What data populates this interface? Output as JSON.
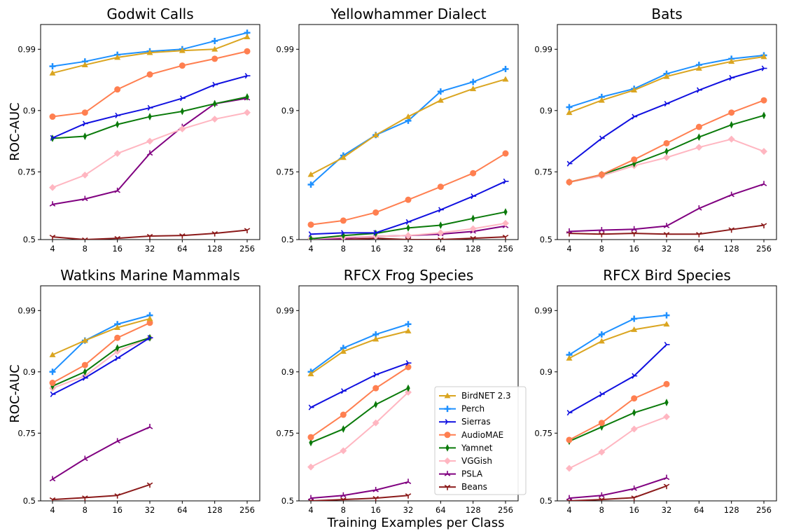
{
  "figure": {
    "ylabel": "ROC-AUC",
    "xlabel": "Training Examples per Class"
  },
  "legend": [
    {
      "name": "BirdNET 2.3",
      "color": "#DAA520",
      "marker": "triangle"
    },
    {
      "name": "Perch",
      "color": "#1E90FF",
      "marker": "plus"
    },
    {
      "name": "Sierras",
      "color": "#1010E0",
      "marker": "tri-right"
    },
    {
      "name": "AudioMAE",
      "color": "#FF7F50",
      "marker": "circle"
    },
    {
      "name": "Yamnet",
      "color": "#0A7A0A",
      "marker": "thin-diamond"
    },
    {
      "name": "VGGish",
      "color": "#FFB6C1",
      "marker": "diamond"
    },
    {
      "name": "PSLA",
      "color": "#800080",
      "marker": "tri-up"
    },
    {
      "name": "Beans",
      "color": "#8B1A1A",
      "marker": "tri-down"
    }
  ],
  "chart_data": [
    {
      "type": "line",
      "title": "Godwit Calls",
      "ylabel": "ROC-AUC",
      "x": [
        4,
        8,
        16,
        32,
        64,
        128,
        256
      ],
      "x_scale": "log2",
      "y_scale": "logit-like",
      "ylim": [
        0.5,
        0.996
      ],
      "yticks": [
        0.5,
        0.75,
        0.9,
        0.99
      ],
      "series": [
        {
          "name": "BirdNET 2.3",
          "values": [
            0.955,
            0.967,
            0.978,
            0.985,
            0.988,
            0.99,
            0.993
          ]
        },
        {
          "name": "Perch",
          "values": [
            0.965,
            0.972,
            0.982,
            0.987,
            0.99,
            0.992,
            0.994
          ]
        },
        {
          "name": "Sierras",
          "values": [
            0.833,
            0.868,
            0.888,
            0.904,
            0.918,
            0.938,
            0.951
          ]
        },
        {
          "name": "AudioMAE",
          "values": [
            0.885,
            0.895,
            0.931,
            0.953,
            0.966,
            0.976,
            0.987
          ]
        },
        {
          "name": "Yamnet",
          "values": [
            0.832,
            0.837,
            0.866,
            0.885,
            0.898,
            0.91,
            0.92
          ]
        },
        {
          "name": "VGGish",
          "values": [
            0.692,
            0.738,
            0.795,
            0.825,
            0.855,
            0.879,
            0.895
          ]
        },
        {
          "name": "PSLA",
          "values": [
            0.63,
            0.65,
            0.68,
            0.795,
            0.86,
            0.91,
            0.918
          ]
        },
        {
          "name": "Beans",
          "values": [
            0.51,
            0.493,
            0.505,
            0.513,
            0.515,
            0.523,
            0.535
          ]
        }
      ]
    },
    {
      "type": "line",
      "title": "Yellowhammer Dialect",
      "x": [
        4,
        8,
        16,
        32,
        64,
        128,
        256
      ],
      "x_scale": "log2",
      "y_scale": "logit-like",
      "ylim": [
        0.5,
        0.996
      ],
      "yticks": [
        0.5,
        0.75,
        0.9,
        0.99
      ],
      "series": [
        {
          "name": "BirdNET 2.3",
          "values": [
            0.74,
            0.785,
            0.84,
            0.885,
            0.915,
            0.932,
            0.946
          ]
        },
        {
          "name": "Perch",
          "values": [
            0.703,
            0.79,
            0.84,
            0.875,
            0.928,
            0.942,
            0.961
          ]
        },
        {
          "name": "Sierras",
          "values": [
            0.52,
            0.525,
            0.525,
            0.565,
            0.61,
            0.66,
            0.715
          ]
        },
        {
          "name": "AudioMAE",
          "values": [
            0.555,
            0.57,
            0.6,
            0.647,
            0.695,
            0.745,
            0.795
          ]
        },
        {
          "name": "Yamnet",
          "values": [
            0.503,
            0.515,
            0.523,
            0.543,
            0.553,
            0.578,
            0.602
          ]
        },
        {
          "name": "VGGish",
          "values": [
            0.503,
            0.508,
            0.512,
            0.515,
            0.525,
            0.54,
            0.56
          ]
        },
        {
          "name": "PSLA",
          "values": [
            0.5,
            0.505,
            0.512,
            0.515,
            0.52,
            0.53,
            0.55
          ]
        },
        {
          "name": "Beans",
          "values": [
            0.5,
            0.5,
            0.505,
            0.5,
            0.5,
            0.505,
            0.51
          ]
        }
      ]
    },
    {
      "type": "line",
      "title": "Bats",
      "x": [
        4,
        8,
        16,
        32,
        64,
        128,
        256
      ],
      "x_scale": "log2",
      "y_scale": "logit-like",
      "ylim": [
        0.5,
        0.996
      ],
      "yticks": [
        0.5,
        0.75,
        0.9,
        0.99
      ],
      "series": [
        {
          "name": "BirdNET 2.3",
          "values": [
            0.895,
            0.915,
            0.93,
            0.95,
            0.962,
            0.972,
            0.979
          ]
        },
        {
          "name": "Perch",
          "values": [
            0.905,
            0.92,
            0.932,
            0.954,
            0.967,
            0.976,
            0.981
          ]
        },
        {
          "name": "Sierras",
          "values": [
            0.77,
            0.832,
            0.885,
            0.91,
            0.93,
            0.948,
            0.962
          ]
        },
        {
          "name": "AudioMAE",
          "values": [
            0.712,
            0.74,
            0.78,
            0.82,
            0.86,
            0.895,
            0.915
          ]
        },
        {
          "name": "Yamnet",
          "values": [
            0.712,
            0.74,
            0.77,
            0.8,
            0.835,
            0.865,
            0.888
          ]
        },
        {
          "name": "VGGish",
          "values": [
            0.712,
            0.735,
            0.765,
            0.785,
            0.81,
            0.83,
            0.8
          ]
        },
        {
          "name": "PSLA",
          "values": [
            0.53,
            0.535,
            0.538,
            0.55,
            0.615,
            0.665,
            0.705
          ]
        },
        {
          "name": "Beans",
          "values": [
            0.523,
            0.52,
            0.523,
            0.52,
            0.52,
            0.537,
            0.553
          ]
        }
      ]
    },
    {
      "type": "line",
      "title": "Watkins Marine Mammals",
      "ylabel": "ROC-AUC",
      "x": [
        4,
        8,
        16,
        32
      ],
      "x_ticks": [
        4,
        8,
        16,
        32,
        64,
        128,
        256
      ],
      "x_scale": "log2",
      "y_scale": "logit-like",
      "ylim": [
        0.5,
        0.996
      ],
      "yticks": [
        0.5,
        0.75,
        0.9,
        0.99
      ],
      "series": [
        {
          "name": "BirdNET 2.3",
          "values": [
            0.925,
            0.946,
            0.965,
            0.978
          ]
        },
        {
          "name": "Perch",
          "values": [
            0.9,
            0.946,
            0.97,
            0.983
          ]
        },
        {
          "name": "Sierras",
          "values": [
            0.845,
            0.885,
            0.92,
            0.95
          ]
        },
        {
          "name": "AudioMAE",
          "values": [
            0.873,
            0.91,
            0.95,
            0.972
          ]
        },
        {
          "name": "Yamnet",
          "values": [
            0.865,
            0.9,
            0.935,
            0.95
          ]
        },
        {
          "name": "VGGish",
          "values": [
            0.86,
            0.89,
            0.93,
            0.95
          ]
        },
        {
          "name": "PSLA",
          "values": [
            0.58,
            0.655,
            0.72,
            0.765
          ]
        },
        {
          "name": "Beans",
          "values": [
            0.505,
            0.512,
            0.52,
            0.56
          ]
        }
      ]
    },
    {
      "type": "line",
      "title": "RFCX Frog Species",
      "x": [
        4,
        8,
        16,
        32
      ],
      "x_ticks": [
        4,
        8,
        16,
        32,
        64,
        128,
        256
      ],
      "x_scale": "log2",
      "y_scale": "logit-like",
      "ylim": [
        0.5,
        0.996
      ],
      "yticks": [
        0.5,
        0.75,
        0.9,
        0.99
      ],
      "series": [
        {
          "name": "BirdNET 2.3",
          "values": [
            0.895,
            0.93,
            0.948,
            0.96
          ]
        },
        {
          "name": "Perch",
          "values": [
            0.9,
            0.935,
            0.955,
            0.97
          ]
        },
        {
          "name": "Sierras",
          "values": [
            0.813,
            0.853,
            0.893,
            0.913
          ]
        },
        {
          "name": "AudioMAE",
          "values": [
            0.735,
            0.795,
            0.86,
            0.907
          ]
        },
        {
          "name": "Yamnet",
          "values": [
            0.715,
            0.76,
            0.82,
            0.86
          ]
        },
        {
          "name": "VGGish",
          "values": [
            0.625,
            0.685,
            0.775,
            0.85
          ]
        },
        {
          "name": "PSLA",
          "values": [
            0.51,
            0.52,
            0.54,
            0.57
          ]
        },
        {
          "name": "Beans",
          "values": [
            0.5,
            0.505,
            0.51,
            0.52
          ]
        }
      ]
    },
    {
      "type": "line",
      "title": "RFCX Bird Species",
      "x": [
        4,
        8,
        16,
        32
      ],
      "x_ticks": [
        4,
        8,
        16,
        32,
        64,
        128,
        256
      ],
      "x_scale": "log2",
      "y_scale": "logit-like",
      "ylim": [
        0.5,
        0.996
      ],
      "yticks": [
        0.5,
        0.75,
        0.9,
        0.99
      ],
      "series": [
        {
          "name": "BirdNET 2.3",
          "values": [
            0.92,
            0.945,
            0.962,
            0.97
          ]
        },
        {
          "name": "Perch",
          "values": [
            0.925,
            0.955,
            0.978,
            0.983
          ]
        },
        {
          "name": "Sierras",
          "values": [
            0.8,
            0.845,
            0.89,
            0.94
          ]
        },
        {
          "name": "AudioMAE",
          "values": [
            0.725,
            0.775,
            0.835,
            0.87
          ]
        },
        {
          "name": "Yamnet",
          "values": [
            0.72,
            0.765,
            0.8,
            0.825
          ]
        },
        {
          "name": "VGGish",
          "values": [
            0.62,
            0.68,
            0.76,
            0.79
          ]
        },
        {
          "name": "PSLA",
          "values": [
            0.51,
            0.52,
            0.545,
            0.585
          ]
        },
        {
          "name": "Beans",
          "values": [
            0.5,
            0.505,
            0.512,
            0.555
          ]
        }
      ]
    }
  ]
}
